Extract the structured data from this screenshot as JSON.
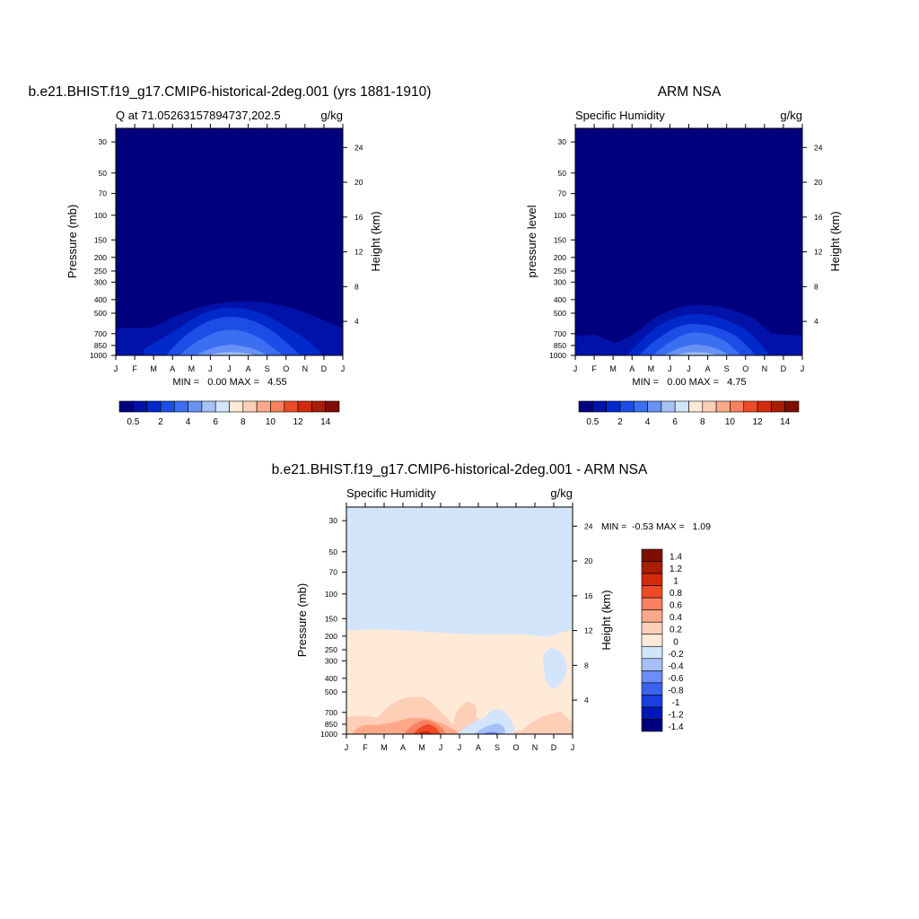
{
  "colors": {
    "abs_scale": [
      "#00007e",
      "#0012a8",
      "#0029cc",
      "#1c4de6",
      "#3c6ef2",
      "#6892f5",
      "#a5c1f8",
      "#d3e5fb",
      "#ffead8",
      "#fdcfb6",
      "#fca98a",
      "#f98060",
      "#ef4a25",
      "#d32a0b",
      "#a91c05",
      "#7f0e02"
    ],
    "diff_scale": [
      "#00007e",
      "#0018b8",
      "#1a3ee0",
      "#3c63f0",
      "#6a8ef5",
      "#a5c1f8",
      "#d3e5fb",
      "#ffead8",
      "#fdcfb6",
      "#fca98a",
      "#f98060",
      "#ef4a25",
      "#d32a0b",
      "#a91c05",
      "#7f0e02"
    ]
  },
  "chart_data": [
    {
      "type": "heatmap",
      "title": "b.e21.BHIST.f19_g17.CMIP6-historical-2deg.001 (yrs 1881-1910)",
      "left_label": "Q at 71.05263157894737,202.5",
      "units": "g/kg",
      "ylabel": "Pressure (mb)",
      "ylabel_right": "Height (km)",
      "x_ticks": [
        "J",
        "F",
        "M",
        "A",
        "M",
        "J",
        "J",
        "A",
        "S",
        "O",
        "N",
        "D",
        "J"
      ],
      "y_ticks": [
        "30",
        "50",
        "70",
        "100",
        "150",
        "200",
        "250",
        "300",
        "400",
        "500",
        "700",
        "850",
        "1000"
      ],
      "y_ticks_right": [
        "24",
        "20",
        "16",
        "12",
        "8",
        "4"
      ],
      "stats": "MIN =   0.00 MAX =   4.55",
      "min": 0.0,
      "max": 4.55,
      "colorbar_labels": [
        "0.5",
        "2",
        "4",
        "6",
        "8",
        "10",
        "12",
        "14"
      ],
      "contour_levels": [
        0.5,
        1,
        2,
        3,
        4
      ]
    },
    {
      "type": "heatmap",
      "title": "ARM NSA",
      "left_label": "Specific Humidity",
      "units": "g/kg",
      "ylabel": "pressure level",
      "ylabel_right": "Height (km)",
      "x_ticks": [
        "J",
        "F",
        "M",
        "A",
        "M",
        "J",
        "J",
        "A",
        "S",
        "O",
        "N",
        "D",
        "J"
      ],
      "y_ticks": [
        "30",
        "50",
        "70",
        "100",
        "150",
        "200",
        "250",
        "300",
        "400",
        "500",
        "700",
        "850",
        "1000"
      ],
      "y_ticks_right": [
        "24",
        "20",
        "16",
        "12",
        "8",
        "4"
      ],
      "stats": "MIN =   0.00 MAX =   4.75",
      "min": 0.0,
      "max": 4.75,
      "colorbar_labels": [
        "0.5",
        "2",
        "4",
        "6",
        "8",
        "10",
        "12",
        "14"
      ],
      "contour_levels": [
        0.5,
        1,
        2,
        3,
        4
      ]
    },
    {
      "type": "heatmap",
      "title": "b.e21.BHIST.f19_g17.CMIP6-historical-2deg.001 - ARM NSA",
      "left_label": "Specific Humidity",
      "units": "g/kg",
      "ylabel": "Pressure (mb)",
      "ylabel_right": "Height (km)",
      "x_ticks": [
        "J",
        "F",
        "M",
        "A",
        "M",
        "J",
        "J",
        "A",
        "S",
        "O",
        "N",
        "D",
        "J"
      ],
      "y_ticks": [
        "30",
        "50",
        "70",
        "100",
        "150",
        "200",
        "250",
        "300",
        "400",
        "500",
        "700",
        "850",
        "1000"
      ],
      "y_ticks_right": [
        "24",
        "20",
        "16",
        "12",
        "8",
        "4"
      ],
      "stats": "MIN =  -0.53 MAX =   1.09",
      "min": -0.53,
      "max": 1.09,
      "colorbar_labels": [
        "1.4",
        "1.2",
        "1",
        "0.8",
        "0.6",
        "0.4",
        "0.2",
        "0",
        "-0.2",
        "-0.4",
        "-0.6",
        "-0.8",
        "-1",
        "-1.2",
        "-1.4"
      ]
    }
  ]
}
